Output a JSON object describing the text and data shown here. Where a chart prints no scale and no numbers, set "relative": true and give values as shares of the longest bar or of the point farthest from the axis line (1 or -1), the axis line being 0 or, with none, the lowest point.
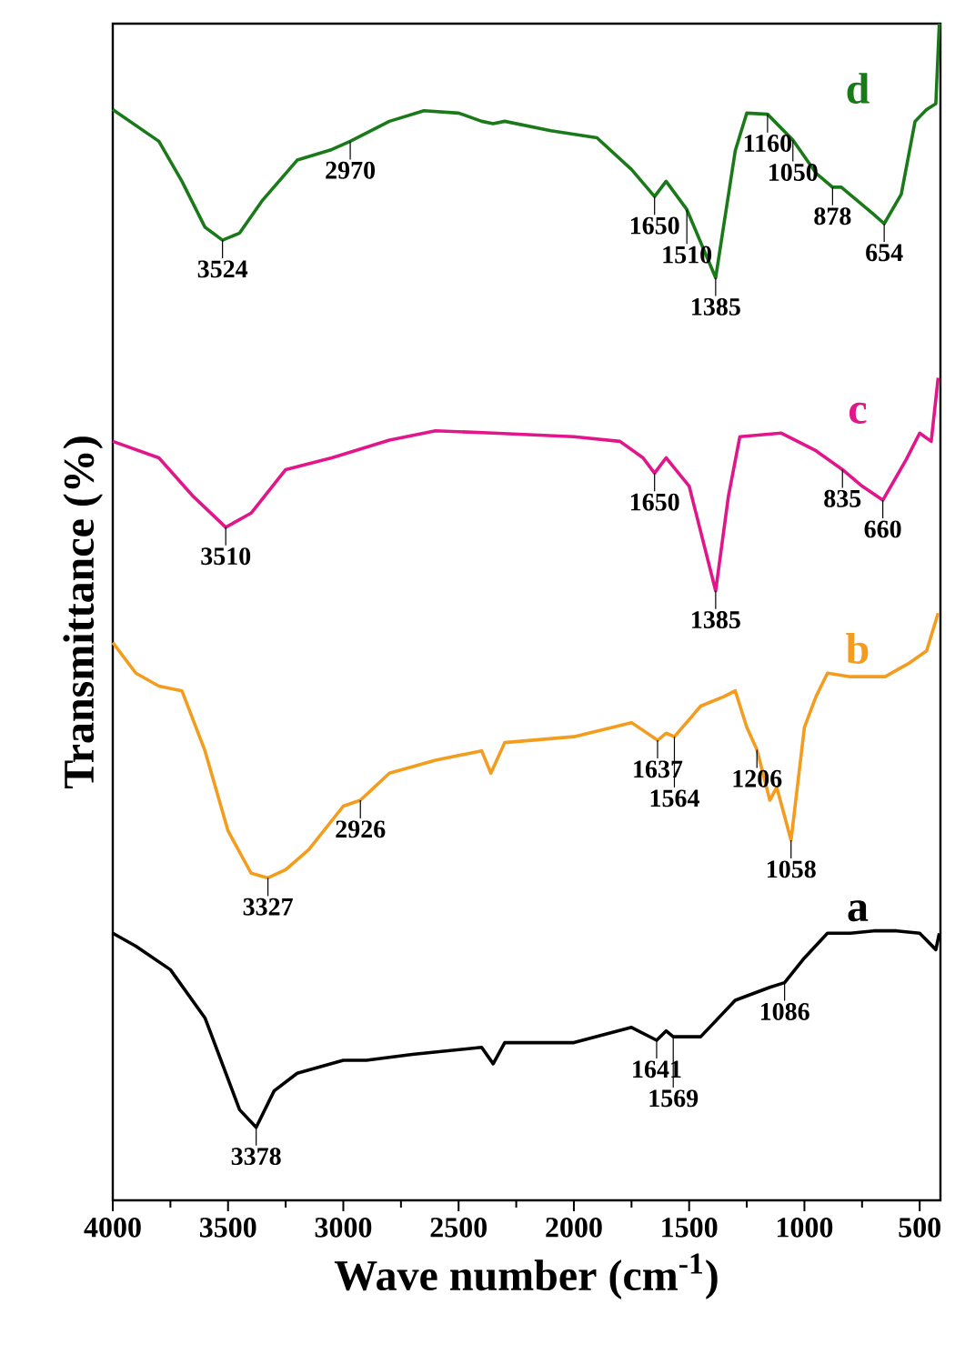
{
  "chart_data": {
    "type": "line",
    "relative": true,
    "xlabel": "Wave number (cm$^{-1}$)",
    "ylabel": "Transmittance (%)",
    "xlim": [
      4000,
      410
    ],
    "xticks": [
      4000,
      3500,
      3000,
      2500,
      2000,
      1500,
      1000,
      500
    ],
    "series": [
      {
        "name": "d",
        "color": "#1a7a1a",
        "x": [
          4000,
          3800,
          3700,
          3600,
          3524,
          3450,
          3350,
          3200,
          3050,
          2970,
          2800,
          2650,
          2500,
          2400,
          2350,
          2300,
          2100,
          1900,
          1750,
          1650,
          1600,
          1510,
          1385,
          1300,
          1250,
          1160,
          1050,
          950,
          878,
          840,
          700,
          654,
          580,
          520,
          470,
          430,
          415
        ],
        "values": [
          0.927,
          0.9,
          0.866,
          0.827,
          0.816,
          0.822,
          0.85,
          0.884,
          0.893,
          0.9,
          0.917,
          0.926,
          0.924,
          0.917,
          0.915,
          0.917,
          0.909,
          0.903,
          0.876,
          0.853,
          0.866,
          0.842,
          0.784,
          0.892,
          0.924,
          0.923,
          0.901,
          0.873,
          0.861,
          0.861,
          0.838,
          0.83,
          0.855,
          0.917,
          0.927,
          0.932,
          1.0
        ]
      },
      {
        "name": "c",
        "color": "#e0168a",
        "x": [
          4000,
          3800,
          3650,
          3510,
          3400,
          3250,
          3050,
          2800,
          2600,
          2350,
          2000,
          1800,
          1700,
          1650,
          1600,
          1500,
          1385,
          1330,
          1280,
          1100,
          950,
          835,
          750,
          660,
          560,
          500,
          450,
          420
        ],
        "values": [
          0.645,
          0.631,
          0.598,
          0.572,
          0.584,
          0.621,
          0.631,
          0.646,
          0.654,
          0.652,
          0.649,
          0.645,
          0.631,
          0.618,
          0.631,
          0.607,
          0.518,
          0.598,
          0.649,
          0.652,
          0.637,
          0.621,
          0.607,
          0.595,
          0.629,
          0.652,
          0.645,
          0.699
        ]
      },
      {
        "name": "b",
        "color": "#f39c1e",
        "x": [
          4000,
          3900,
          3800,
          3700,
          3600,
          3500,
          3400,
          3327,
          3250,
          3150,
          3000,
          2926,
          2800,
          2600,
          2400,
          2360,
          2300,
          2000,
          1750,
          1637,
          1600,
          1564,
          1450,
          1350,
          1300,
          1250,
          1206,
          1150,
          1120,
          1058,
          1000,
          950,
          900,
          800,
          650,
          550,
          470,
          420
        ],
        "values": [
          0.474,
          0.448,
          0.437,
          0.433,
          0.382,
          0.314,
          0.278,
          0.274,
          0.281,
          0.298,
          0.335,
          0.34,
          0.363,
          0.374,
          0.382,
          0.363,
          0.389,
          0.394,
          0.406,
          0.391,
          0.397,
          0.394,
          0.42,
          0.428,
          0.433,
          0.402,
          0.383,
          0.34,
          0.351,
          0.306,
          0.402,
          0.428,
          0.448,
          0.445,
          0.445,
          0.456,
          0.467,
          0.499
        ]
      },
      {
        "name": "a",
        "color": "#000000",
        "x": [
          4000,
          3900,
          3750,
          3600,
          3450,
          3378,
          3300,
          3200,
          3000,
          2900,
          2700,
          2400,
          2350,
          2300,
          2000,
          1750,
          1641,
          1600,
          1569,
          1450,
          1300,
          1150,
          1086,
          1000,
          900,
          800,
          700,
          600,
          500,
          430,
          415
        ],
        "values": [
          0.227,
          0.216,
          0.196,
          0.155,
          0.077,
          0.062,
          0.093,
          0.108,
          0.119,
          0.119,
          0.124,
          0.13,
          0.116,
          0.134,
          0.134,
          0.147,
          0.136,
          0.144,
          0.139,
          0.139,
          0.17,
          0.181,
          0.185,
          0.206,
          0.227,
          0.227,
          0.229,
          0.229,
          0.227,
          0.213,
          0.227
        ]
      }
    ],
    "annotations": [
      {
        "text": "3524",
        "x": 3524,
        "y": 0.816
      },
      {
        "text": "2970",
        "x": 2970,
        "y": 0.9
      },
      {
        "text": "1650",
        "x": 1650,
        "y": 0.853
      },
      {
        "text": "1510",
        "x": 1510,
        "y": 0.842
      },
      {
        "text": "1385",
        "x": 1385,
        "y": 0.784
      },
      {
        "text": "1160",
        "x": 1160,
        "y": 0.923
      },
      {
        "text": "1050",
        "x": 1050,
        "y": 0.901
      },
      {
        "text": "878",
        "x": 878,
        "y": 0.861
      },
      {
        "text": "654",
        "x": 654,
        "y": 0.83
      },
      {
        "text": "3510",
        "x": 3510,
        "y": 0.572
      },
      {
        "text": "1650",
        "x": 1650,
        "y": 0.618
      },
      {
        "text": "1385",
        "x": 1385,
        "y": 0.518
      },
      {
        "text": "835",
        "x": 835,
        "y": 0.621
      },
      {
        "text": "660",
        "x": 660,
        "y": 0.595
      },
      {
        "text": "3327",
        "x": 3327,
        "y": 0.274
      },
      {
        "text": "2926",
        "x": 2926,
        "y": 0.34
      },
      {
        "text": "1637",
        "x": 1637,
        "y": 0.391
      },
      {
        "text": "1564",
        "x": 1564,
        "y": 0.394
      },
      {
        "text": "1206",
        "x": 1206,
        "y": 0.383
      },
      {
        "text": "1058",
        "x": 1058,
        "y": 0.306
      },
      {
        "text": "3378",
        "x": 3378,
        "y": 0.062
      },
      {
        "text": "1641",
        "x": 1641,
        "y": 0.136
      },
      {
        "text": "1569",
        "x": 1569,
        "y": 0.139
      },
      {
        "text": "1086",
        "x": 1086,
        "y": 0.185
      }
    ]
  }
}
